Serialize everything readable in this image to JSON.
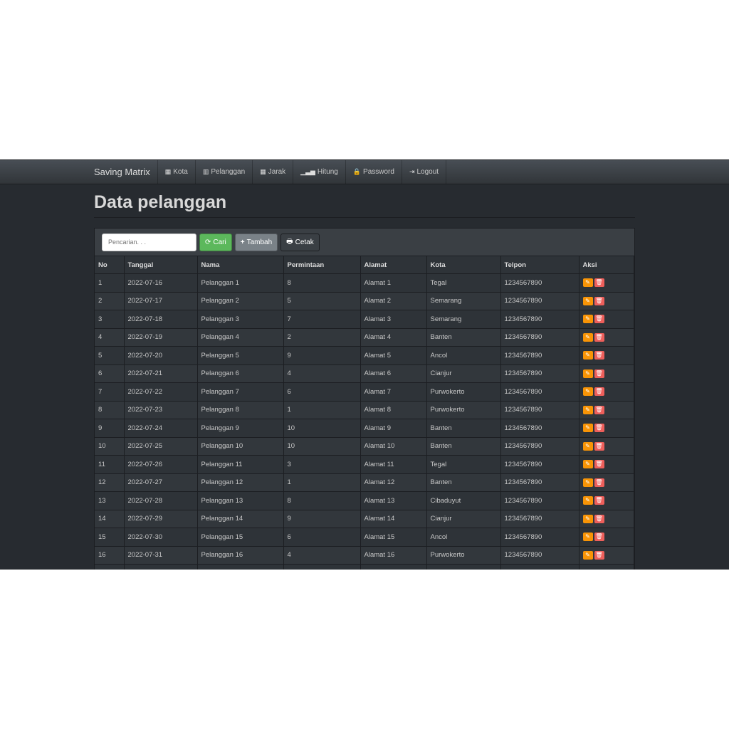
{
  "navbar": {
    "brand": "Saving Matrix",
    "items": [
      {
        "label": "Kota",
        "icon": "grid-icon"
      },
      {
        "label": "Pelanggan",
        "icon": "list-grid-icon"
      },
      {
        "label": "Jarak",
        "icon": "grid-icon"
      },
      {
        "label": "Hitung",
        "icon": "signal-icon"
      },
      {
        "label": "Password",
        "icon": "lock-icon"
      },
      {
        "label": "Logout",
        "icon": "logout-icon"
      }
    ]
  },
  "page": {
    "title": "Data pelanggan"
  },
  "toolbar": {
    "search_placeholder": "Pencarian. . .",
    "search_value": "",
    "cari": "Cari",
    "tambah": "Tambah",
    "cetak": "Cetak"
  },
  "colors": {
    "edit": "#f89406",
    "delete": "#ee5f5b",
    "cari": "#5cb85c"
  },
  "table": {
    "headers": [
      "No",
      "Tanggal",
      "Nama",
      "Permintaan",
      "Alamat",
      "Kota",
      "Telpon",
      "Aksi"
    ],
    "rows": [
      [
        "1",
        "2022-07-16",
        "Pelanggan 1",
        "8",
        "Alamat 1",
        "Tegal",
        "1234567890"
      ],
      [
        "2",
        "2022-07-17",
        "Pelanggan 2",
        "5",
        "Alamat 2",
        "Semarang",
        "1234567890"
      ],
      [
        "3",
        "2022-07-18",
        "Pelanggan 3",
        "7",
        "Alamat 3",
        "Semarang",
        "1234567890"
      ],
      [
        "4",
        "2022-07-19",
        "Pelanggan 4",
        "2",
        "Alamat 4",
        "Banten",
        "1234567890"
      ],
      [
        "5",
        "2022-07-20",
        "Pelanggan 5",
        "9",
        "Alamat 5",
        "Ancol",
        "1234567890"
      ],
      [
        "6",
        "2022-07-21",
        "Pelanggan 6",
        "4",
        "Alamat 6",
        "Cianjur",
        "1234567890"
      ],
      [
        "7",
        "2022-07-22",
        "Pelanggan 7",
        "6",
        "Alamat 7",
        "Purwokerto",
        "1234567890"
      ],
      [
        "8",
        "2022-07-23",
        "Pelanggan 8",
        "1",
        "Alamat 8",
        "Purwokerto",
        "1234567890"
      ],
      [
        "9",
        "2022-07-24",
        "Pelanggan 9",
        "10",
        "Alamat 9",
        "Banten",
        "1234567890"
      ],
      [
        "10",
        "2022-07-25",
        "Pelanggan 10",
        "10",
        "Alamat 10",
        "Banten",
        "1234567890"
      ],
      [
        "11",
        "2022-07-26",
        "Pelanggan 11",
        "3",
        "Alamat 11",
        "Tegal",
        "1234567890"
      ],
      [
        "12",
        "2022-07-27",
        "Pelanggan 12",
        "1",
        "Alamat 12",
        "Banten",
        "1234567890"
      ],
      [
        "13",
        "2022-07-28",
        "Pelanggan 13",
        "8",
        "Alamat 13",
        "Cibaduyut",
        "1234567890"
      ],
      [
        "14",
        "2022-07-29",
        "Pelanggan 14",
        "9",
        "Alamat 14",
        "Cianjur",
        "1234567890"
      ],
      [
        "15",
        "2022-07-30",
        "Pelanggan 15",
        "6",
        "Alamat 15",
        "Ancol",
        "1234567890"
      ],
      [
        "16",
        "2022-07-31",
        "Pelanggan 16",
        "4",
        "Alamat 16",
        "Purwokerto",
        "1234567890"
      ],
      [
        "",
        "",
        "",
        "",
        "",
        "",
        ""
      ]
    ]
  }
}
